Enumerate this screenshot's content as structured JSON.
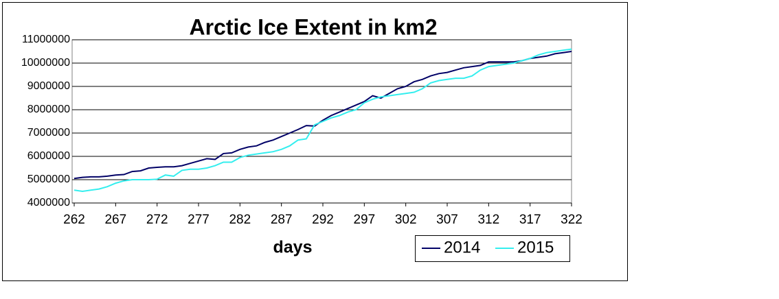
{
  "chart_data": {
    "type": "line",
    "title": "Arctic Ice Extent in km2",
    "x_label": "days",
    "x": [
      262,
      263,
      264,
      265,
      266,
      267,
      268,
      269,
      270,
      271,
      272,
      273,
      274,
      275,
      276,
      277,
      278,
      279,
      280,
      281,
      282,
      283,
      284,
      285,
      286,
      287,
      288,
      289,
      290,
      291,
      292,
      293,
      294,
      295,
      296,
      297,
      298,
      299,
      300,
      301,
      302,
      303,
      304,
      305,
      306,
      307,
      308,
      309,
      310,
      311,
      312,
      313,
      314,
      315,
      316,
      317,
      318,
      319,
      320,
      321,
      322
    ],
    "series": [
      {
        "name": "2014",
        "color": "#000066",
        "values": [
          5050000,
          5100000,
          5120000,
          5120000,
          5150000,
          5200000,
          5220000,
          5350000,
          5380000,
          5500000,
          5530000,
          5550000,
          5550000,
          5600000,
          5700000,
          5800000,
          5900000,
          5870000,
          6120000,
          6150000,
          6300000,
          6400000,
          6450000,
          6600000,
          6700000,
          6850000,
          7000000,
          7150000,
          7320000,
          7300000,
          7550000,
          7750000,
          7900000,
          8050000,
          8200000,
          8350000,
          8600000,
          8500000,
          8700000,
          8900000,
          9000000,
          9200000,
          9300000,
          9450000,
          9550000,
          9600000,
          9700000,
          9800000,
          9850000,
          9900000,
          10050000,
          10050000,
          10050000,
          10050000,
          10100000,
          10200000,
          10250000,
          10300000,
          10400000,
          10450000,
          10500000
        ]
      },
      {
        "name": "2015",
        "color": "#33eeee",
        "values": [
          4550000,
          4500000,
          4550000,
          4600000,
          4700000,
          4850000,
          4950000,
          5000000,
          5000000,
          5000000,
          5020000,
          5200000,
          5150000,
          5400000,
          5450000,
          5450000,
          5500000,
          5600000,
          5750000,
          5750000,
          5950000,
          6050000,
          6100000,
          6150000,
          6200000,
          6300000,
          6450000,
          6700000,
          6750000,
          7350000,
          7500000,
          7650000,
          7750000,
          7900000,
          8000000,
          8300000,
          8450000,
          8550000,
          8600000,
          8650000,
          8700000,
          8750000,
          8900000,
          9150000,
          9250000,
          9300000,
          9350000,
          9350000,
          9450000,
          9700000,
          9850000,
          9900000,
          9950000,
          10000000,
          10100000,
          10200000,
          10350000,
          10450000,
          10500000,
          10550000,
          10600000
        ]
      }
    ],
    "xlim": [
      262,
      322
    ],
    "xticks": [
      262,
      267,
      272,
      277,
      282,
      287,
      292,
      297,
      302,
      307,
      312,
      317,
      322
    ],
    "ylim": [
      4000000,
      11000000
    ],
    "yticks": [
      4000000,
      5000000,
      6000000,
      7000000,
      8000000,
      9000000,
      10000000,
      11000000
    ],
    "grid": true,
    "legend": "bottom-right"
  }
}
